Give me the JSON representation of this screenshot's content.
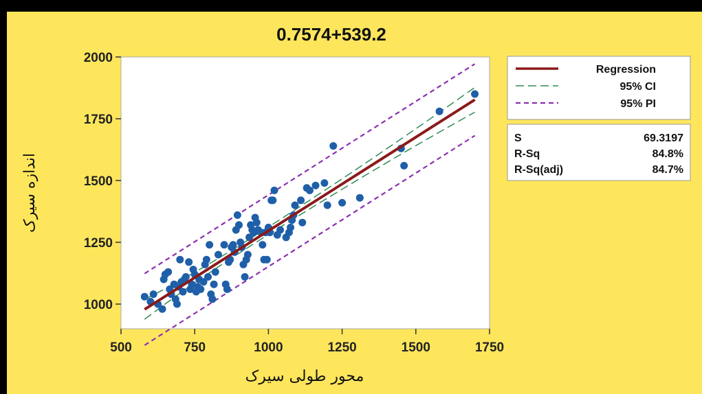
{
  "chart_data": {
    "type": "scatter",
    "title": "0.7574+539.2",
    "xlabel": "محور طولی سیرک",
    "ylabel": "اندازه سیرک",
    "xlim": [
      500,
      1750
    ],
    "ylim": [
      900,
      2000
    ],
    "xticks": [
      500,
      750,
      1000,
      1250,
      1500,
      1750
    ],
    "yticks": [
      1000,
      1250,
      1500,
      1750,
      2000
    ],
    "colors": {
      "points": "#1F5FA8",
      "regression": "#8B1A1A",
      "ci": "#2E8B57",
      "pi": "#8B2FB0",
      "background": "#FEE65C"
    },
    "regression": {
      "intercept": 539.2,
      "slope": 0.7574,
      "x_range": [
        580,
        1700
      ]
    },
    "ci_halfwidth": {
      "at_xmin": 40,
      "at_xmean": 15,
      "at_xmax": 50,
      "xmean": 930
    },
    "pi_halfwidth": 145,
    "legend": {
      "position": "right",
      "entries": [
        {
          "label": "Regression",
          "style": "solid"
        },
        {
          "label": "95% CI",
          "style": "dash-long"
        },
        {
          "label": "95% PI",
          "style": "dash-short"
        }
      ]
    },
    "stats": [
      {
        "name": "S",
        "value": "69.3197"
      },
      {
        "name": "R-Sq",
        "value": "84.8%"
      },
      {
        "name": "R-Sq(adj)",
        "value": "84.7%"
      }
    ],
    "points": [
      [
        580,
        1030
      ],
      [
        600,
        1010
      ],
      [
        610,
        1040
      ],
      [
        625,
        1000
      ],
      [
        640,
        980
      ],
      [
        645,
        1100
      ],
      [
        650,
        1120
      ],
      [
        660,
        1130
      ],
      [
        665,
        1060
      ],
      [
        670,
        1040
      ],
      [
        680,
        1080
      ],
      [
        685,
        1020
      ],
      [
        690,
        1000
      ],
      [
        695,
        1070
      ],
      [
        700,
        1180
      ],
      [
        705,
        1090
      ],
      [
        710,
        1050
      ],
      [
        715,
        1100
      ],
      [
        720,
        1110
      ],
      [
        730,
        1170
      ],
      [
        735,
        1060
      ],
      [
        740,
        1080
      ],
      [
        745,
        1140
      ],
      [
        750,
        1120
      ],
      [
        755,
        1050
      ],
      [
        760,
        1070
      ],
      [
        765,
        1100
      ],
      [
        770,
        1060
      ],
      [
        780,
        1090
      ],
      [
        785,
        1160
      ],
      [
        790,
        1180
      ],
      [
        795,
        1110
      ],
      [
        800,
        1240
      ],
      [
        805,
        1040
      ],
      [
        810,
        1020
      ],
      [
        815,
        1080
      ],
      [
        820,
        1130
      ],
      [
        830,
        1200
      ],
      [
        850,
        1240
      ],
      [
        855,
        1080
      ],
      [
        860,
        1060
      ],
      [
        865,
        1170
      ],
      [
        870,
        1180
      ],
      [
        875,
        1230
      ],
      [
        880,
        1240
      ],
      [
        885,
        1210
      ],
      [
        890,
        1300
      ],
      [
        895,
        1360
      ],
      [
        900,
        1320
      ],
      [
        905,
        1250
      ],
      [
        910,
        1230
      ],
      [
        915,
        1160
      ],
      [
        920,
        1110
      ],
      [
        925,
        1180
      ],
      [
        930,
        1200
      ],
      [
        935,
        1270
      ],
      [
        940,
        1320
      ],
      [
        945,
        1300
      ],
      [
        950,
        1290
      ],
      [
        955,
        1350
      ],
      [
        960,
        1330
      ],
      [
        965,
        1300
      ],
      [
        975,
        1290
      ],
      [
        980,
        1240
      ],
      [
        985,
        1180
      ],
      [
        990,
        1290
      ],
      [
        995,
        1180
      ],
      [
        1000,
        1310
      ],
      [
        1005,
        1290
      ],
      [
        1010,
        1420
      ],
      [
        1015,
        1420
      ],
      [
        1020,
        1460
      ],
      [
        1030,
        1280
      ],
      [
        1040,
        1300
      ],
      [
        1060,
        1270
      ],
      [
        1070,
        1290
      ],
      [
        1075,
        1310
      ],
      [
        1080,
        1340
      ],
      [
        1085,
        1360
      ],
      [
        1090,
        1400
      ],
      [
        1110,
        1420
      ],
      [
        1115,
        1330
      ],
      [
        1130,
        1470
      ],
      [
        1140,
        1460
      ],
      [
        1160,
        1480
      ],
      [
        1190,
        1490
      ],
      [
        1200,
        1400
      ],
      [
        1220,
        1640
      ],
      [
        1250,
        1410
      ],
      [
        1310,
        1430
      ],
      [
        1450,
        1630
      ],
      [
        1460,
        1560
      ],
      [
        1580,
        1780
      ],
      [
        1700,
        1850
      ]
    ]
  }
}
